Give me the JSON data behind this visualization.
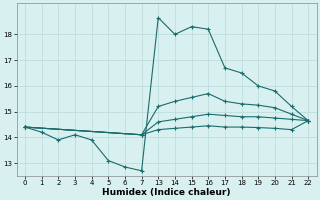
{
  "bg_color": "#d8f0f0",
  "grid_color": "#c0dede",
  "line_color": "#1a6b6b",
  "xlabel": "Humidex (Indice chaleur)",
  "x_tick_positions": [
    0,
    1,
    2,
    3,
    4,
    5,
    6,
    7,
    8,
    9,
    10,
    11,
    12,
    13,
    14,
    15,
    16,
    17
  ],
  "x_tick_labels": [
    "0",
    "1",
    "2",
    "3",
    "4",
    "5",
    "6",
    "7",
    "13",
    "14",
    "15",
    "16",
    "17",
    "18",
    "19",
    "20",
    "21",
    "22"
  ],
  "line1_x": [
    0,
    1,
    2,
    3,
    4,
    5,
    6,
    7,
    8,
    9,
    10,
    11,
    12,
    13,
    14,
    15,
    16,
    17
  ],
  "line1_y": [
    14.4,
    14.2,
    13.9,
    14.1,
    13.9,
    13.1,
    12.85,
    12.7,
    18.65,
    18.0,
    18.3,
    18.2,
    16.7,
    16.5,
    16.0,
    15.8,
    15.2,
    14.65
  ],
  "line2_x": [
    0,
    7,
    8,
    9,
    10,
    11,
    12,
    13,
    14,
    15,
    16,
    17
  ],
  "line2_y": [
    14.4,
    14.1,
    15.2,
    15.4,
    15.55,
    15.7,
    15.4,
    15.3,
    15.25,
    15.15,
    14.9,
    14.65
  ],
  "line3_x": [
    0,
    7,
    8,
    9,
    10,
    11,
    12,
    13,
    14,
    15,
    16,
    17
  ],
  "line3_y": [
    14.4,
    14.1,
    14.6,
    14.7,
    14.8,
    14.9,
    14.85,
    14.8,
    14.8,
    14.75,
    14.7,
    14.65
  ],
  "line4_x": [
    0,
    7,
    8,
    9,
    10,
    11,
    12,
    13,
    14,
    15,
    16,
    17
  ],
  "line4_y": [
    14.4,
    14.1,
    14.3,
    14.35,
    14.4,
    14.45,
    14.4,
    14.4,
    14.38,
    14.35,
    14.3,
    14.65
  ],
  "ylim": [
    12.5,
    19.2
  ],
  "xlim": [
    -0.5,
    17.5
  ],
  "yticks": [
    13,
    14,
    15,
    16,
    17,
    18
  ]
}
